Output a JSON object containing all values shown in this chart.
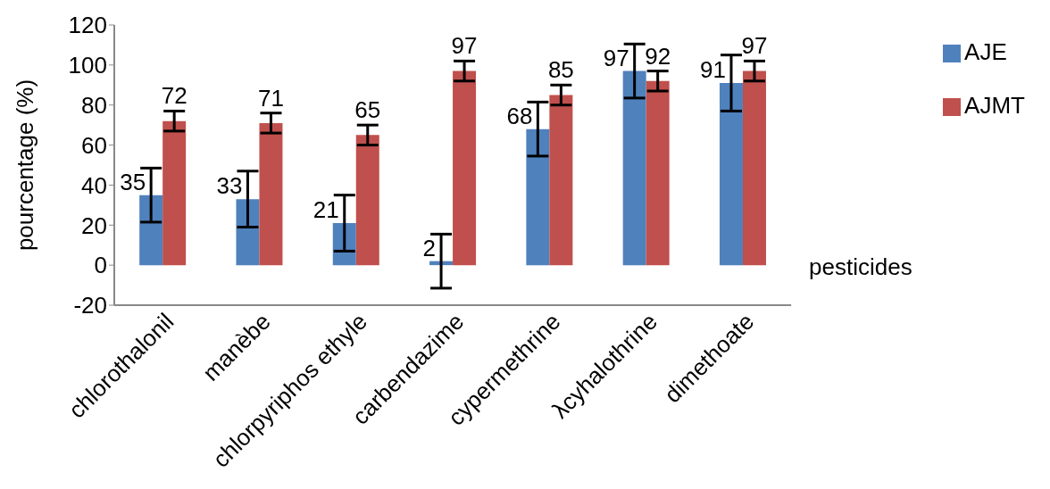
{
  "chart_data": {
    "type": "bar",
    "xlabel": "pesticides",
    "ylabel": "pourcentage (%)",
    "categories": [
      "chlorothalonil",
      "manèbe",
      "chlorpyriphos ethyle",
      "carbendazime",
      "cypermethrine",
      "λcyhalothrine",
      "dimethoate"
    ],
    "series": [
      {
        "name": "AJE",
        "color": "#4f81bd",
        "values": [
          35,
          33,
          21,
          2,
          68,
          97,
          91
        ],
        "errors": [
          13.5,
          14,
          14,
          13.5,
          13.5,
          13.5,
          14
        ]
      },
      {
        "name": "AJMT",
        "color": "#c0504d",
        "values": [
          72,
          71,
          65,
          97,
          85,
          92,
          97
        ],
        "errors": [
          5,
          5,
          5,
          5,
          5,
          5,
          5
        ]
      }
    ],
    "ylim": [
      -20,
      120
    ],
    "yticks": [
      -20,
      0,
      20,
      40,
      60,
      80,
      100,
      120
    ],
    "grid": false,
    "legend": "top right",
    "data_labels": true
  }
}
